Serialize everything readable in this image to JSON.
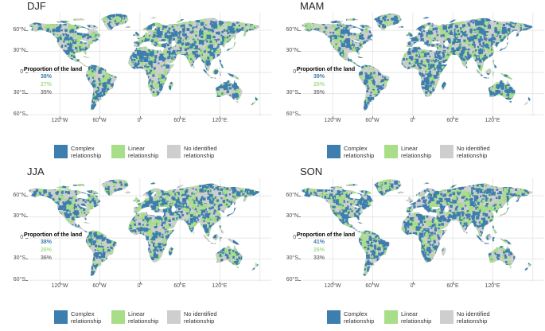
{
  "annotation_title": "Proportion of the land",
  "axes": {
    "lat": [
      "60°N",
      "30°N",
      "0°",
      "30°S",
      "60°S"
    ],
    "lon": [
      "120°W",
      "60°W",
      "0°",
      "60°E",
      "120°E"
    ]
  },
  "legend": [
    {
      "line1": "Complex",
      "line2": "relationship"
    },
    {
      "line1": "Linear",
      "line2": "relationship"
    },
    {
      "line1": "No identified",
      "line2": "relationship"
    }
  ],
  "colors": {
    "complex": "#3d7eae",
    "linear": "#a7de87",
    "none": "#cecece",
    "none_text": "#7a7a7a",
    "grid": "#e4e4e4",
    "axis_text": "#4d4d4d"
  },
  "panels": [
    {
      "title": "DJF",
      "complex": "38%",
      "linear": "27%",
      "none": "35%",
      "complex_value": 38,
      "linear_value": 27,
      "none_value": 35
    },
    {
      "title": "MAM",
      "complex": "39%",
      "linear": "26%",
      "none": "35%",
      "complex_value": 39,
      "linear_value": 26,
      "none_value": 35
    },
    {
      "title": "JJA",
      "complex": "38%",
      "linear": "26%",
      "none": "36%",
      "complex_value": 38,
      "linear_value": 26,
      "none_value": 36
    },
    {
      "title": "SON",
      "complex": "41%",
      "linear": "26%",
      "none": "33%",
      "complex_value": 41,
      "linear_value": 26,
      "none_value": 33
    }
  ],
  "chart_data": [
    {
      "type": "heatmap",
      "subtype": "categorical world map, equirectangular lat-lon grid",
      "title": "DJF",
      "categories": [
        "Complex relationship",
        "Linear relationship",
        "No identified relationship"
      ],
      "values_pct": [
        38,
        27,
        35
      ],
      "category_colors": [
        "#3d7eae",
        "#a7de87",
        "#cecece"
      ],
      "annotation": "Proportion of the land",
      "x_tick_labels": [
        "120°W",
        "60°W",
        "0°",
        "60°E",
        "120°E"
      ],
      "y_tick_labels": [
        "60°N",
        "30°N",
        "0°",
        "30°S",
        "60°S"
      ],
      "grid": true,
      "legend_position": "bottom"
    },
    {
      "type": "heatmap",
      "subtype": "categorical world map, equirectangular lat-lon grid",
      "title": "MAM",
      "categories": [
        "Complex relationship",
        "Linear relationship",
        "No identified relationship"
      ],
      "values_pct": [
        39,
        26,
        35
      ],
      "category_colors": [
        "#3d7eae",
        "#a7de87",
        "#cecece"
      ],
      "annotation": "Proportion of the land",
      "x_tick_labels": [
        "120°W",
        "60°W",
        "0°",
        "60°E",
        "120°E"
      ],
      "y_tick_labels": [
        "60°N",
        "30°N",
        "0°",
        "30°S",
        "60°S"
      ],
      "grid": true,
      "legend_position": "bottom"
    },
    {
      "type": "heatmap",
      "subtype": "categorical world map, equirectangular lat-lon grid",
      "title": "JJA",
      "categories": [
        "Complex relationship",
        "Linear relationship",
        "No identified relationship"
      ],
      "values_pct": [
        38,
        26,
        36
      ],
      "category_colors": [
        "#3d7eae",
        "#a7de87",
        "#cecece"
      ],
      "annotation": "Proportion of the land",
      "x_tick_labels": [
        "120°W",
        "60°W",
        "0°",
        "60°E",
        "120°E"
      ],
      "y_tick_labels": [
        "60°N",
        "30°N",
        "0°",
        "30°S",
        "60°S"
      ],
      "grid": true,
      "legend_position": "bottom"
    },
    {
      "type": "heatmap",
      "subtype": "categorical world map, equirectangular lat-lon grid",
      "title": "SON",
      "categories": [
        "Complex relationship",
        "Linear relationship",
        "No identified relationship"
      ],
      "values_pct": [
        41,
        26,
        33
      ],
      "category_colors": [
        "#3d7eae",
        "#a7de87",
        "#cecece"
      ],
      "annotation": "Proportion of the land",
      "x_tick_labels": [
        "120°W",
        "60°W",
        "0°",
        "60°E",
        "120°E"
      ],
      "y_tick_labels": [
        "60°N",
        "30°N",
        "0°",
        "30°S",
        "60°S"
      ],
      "grid": true,
      "legend_position": "bottom"
    }
  ]
}
